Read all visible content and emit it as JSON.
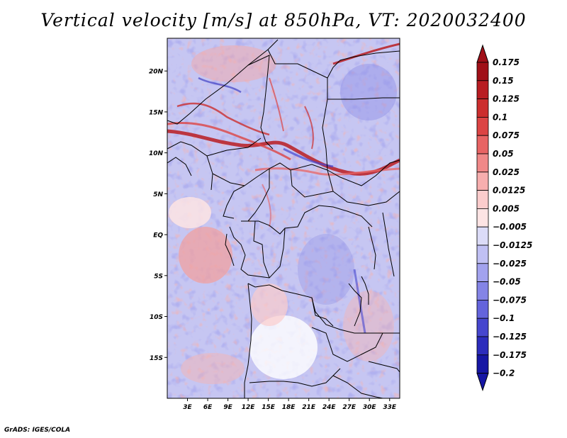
{
  "title": "Vertical velocity [m/s] at 850hPa, VT: 2020032400",
  "credit": "GrADS: IGES/COLA",
  "map": {
    "lon_range": [
      0,
      34.5
    ],
    "lat_range": [
      -20,
      24
    ],
    "lat_ticks": [
      {
        "value": 20,
        "label": "20N"
      },
      {
        "value": 15,
        "label": "15N"
      },
      {
        "value": 10,
        "label": "10N"
      },
      {
        "value": 5,
        "label": "5N"
      },
      {
        "value": 0,
        "label": "EQ"
      },
      {
        "value": -5,
        "label": "5S"
      },
      {
        "value": -10,
        "label": "10S"
      },
      {
        "value": -15,
        "label": "15S"
      }
    ],
    "lon_ticks": [
      {
        "value": 3,
        "label": "3E"
      },
      {
        "value": 6,
        "label": "6E"
      },
      {
        "value": 9,
        "label": "9E"
      },
      {
        "value": 12,
        "label": "12E"
      },
      {
        "value": 15,
        "label": "15E"
      },
      {
        "value": 18,
        "label": "18E"
      },
      {
        "value": 21,
        "label": "21E"
      },
      {
        "value": 24,
        "label": "24E"
      },
      {
        "value": 27,
        "label": "27E"
      },
      {
        "value": 30,
        "label": "30E"
      },
      {
        "value": 33,
        "label": "33E"
      }
    ]
  },
  "colorbar": {
    "levels": [
      {
        "label": "0.175",
        "color": "#a01018"
      },
      {
        "label": "0.15",
        "color": "#b81c22"
      },
      {
        "label": "0.125",
        "color": "#cc2e2e"
      },
      {
        "label": "0.1",
        "color": "#dc4444"
      },
      {
        "label": "0.075",
        "color": "#e86464"
      },
      {
        "label": "0.05",
        "color": "#f08888"
      },
      {
        "label": "0.025",
        "color": "#f7aeae"
      },
      {
        "label": "0.0125",
        "color": "#fbcccc"
      },
      {
        "label": "0.005",
        "color": "#fde4e4"
      },
      {
        "label": "−0.005",
        "color": "#ffffff"
      },
      {
        "label": "−0.0125",
        "color": "#dcdcf8"
      },
      {
        "label": "−0.025",
        "color": "#c0c0f4"
      },
      {
        "label": "−0.05",
        "color": "#a2a2ee"
      },
      {
        "label": "−0.075",
        "color": "#8484e6"
      },
      {
        "label": "−0.1",
        "color": "#6464dc"
      },
      {
        "label": "−0.125",
        "color": "#4646ce"
      },
      {
        "label": "−0.175",
        "color": "#2c2cbc"
      },
      {
        "label": "−0.2",
        "color": "#1616a4"
      }
    ],
    "over_color": "#a01018",
    "under_color": "#1616a4"
  }
}
